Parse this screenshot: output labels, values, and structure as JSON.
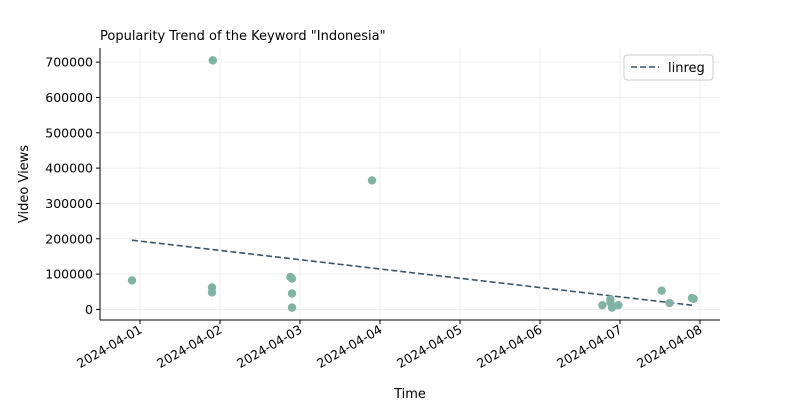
{
  "chart_data": {
    "type": "scatter",
    "title": "Popularity Trend of the Keyword \"Indonesia\"",
    "xlabel": "Time",
    "ylabel": "Video Views",
    "x_type": "datetime",
    "xlim": [
      "2024-03-31T12:00",
      "2024-04-08T06:00"
    ],
    "ylim": [
      -30000,
      740000
    ],
    "x_ticks": [
      "2024-04-01",
      "2024-04-02",
      "2024-04-03",
      "2024-04-04",
      "2024-04-05",
      "2024-04-06",
      "2024-04-07",
      "2024-04-08"
    ],
    "y_ticks": [
      0,
      100000,
      200000,
      300000,
      400000,
      500000,
      600000,
      700000
    ],
    "y_tick_labels": [
      "0",
      "100000",
      "200000",
      "300000",
      "400000",
      "500000",
      "600000",
      "700000"
    ],
    "grid": true,
    "legend": {
      "position": "top-right",
      "entries": [
        "linreg"
      ]
    },
    "colors": {
      "points": "#7fb3a4",
      "regression": "#3d5566"
    },
    "series": [
      {
        "type": "scatter",
        "points": [
          [
            "2024-03-31T21:36",
            82000
          ],
          [
            "2024-04-01T21:36",
            62000
          ],
          [
            "2024-04-01T21:36",
            48000
          ],
          [
            "2024-04-01T21:50",
            705000
          ],
          [
            "2024-04-02T21:07",
            92000
          ],
          [
            "2024-04-02T21:36",
            87000
          ],
          [
            "2024-04-02T21:36",
            45000
          ],
          [
            "2024-04-02T21:36",
            5000
          ],
          [
            "2024-04-03T21:36",
            365000
          ],
          [
            "2024-04-06T18:43",
            12000
          ],
          [
            "2024-04-06T21:07",
            28000
          ],
          [
            "2024-04-06T21:07",
            20000
          ],
          [
            "2024-04-06T21:36",
            5000
          ],
          [
            "2024-04-06T23:31",
            12000
          ],
          [
            "2024-04-07T12:29",
            53000
          ],
          [
            "2024-04-07T14:53",
            18000
          ],
          [
            "2024-04-07T21:36",
            32000
          ],
          [
            "2024-04-07T22:05",
            30000
          ]
        ]
      },
      {
        "type": "line",
        "name": "linreg",
        "style": "dashed",
        "points": [
          [
            "2024-03-31T21:36",
            196000
          ],
          [
            "2024-04-07T21:36",
            12000
          ]
        ]
      }
    ]
  }
}
